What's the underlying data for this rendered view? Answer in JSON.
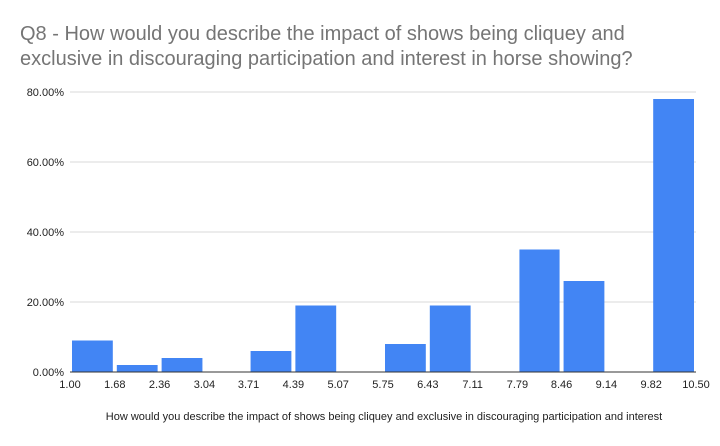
{
  "chart_data": {
    "type": "bar",
    "title": "Q8 - How would you describe the impact of shows being cliquey and exclusive in discouraging participation and interest in horse showing?",
    "xlabel": "How would you describe the impact of shows being cliquey and exclusive in discouraging participation and interest",
    "ylabel": "",
    "x_ticks": [
      "1.00",
      "1.68",
      "2.36",
      "3.04",
      "3.71",
      "4.39",
      "5.07",
      "5.75",
      "6.43",
      "7.11",
      "7.79",
      "8.46",
      "9.14",
      "9.82",
      "10.50"
    ],
    "y_ticks": [
      "0.00%",
      "20.00%",
      "40.00%",
      "60.00%",
      "80.00%"
    ],
    "ylim": [
      0,
      80
    ],
    "bins": [
      {
        "start": 1.0,
        "end": 1.68,
        "value": 9
      },
      {
        "start": 1.68,
        "end": 2.36,
        "value": 2
      },
      {
        "start": 2.36,
        "end": 3.04,
        "value": 4
      },
      {
        "start": 3.04,
        "end": 3.71,
        "value": 0
      },
      {
        "start": 3.71,
        "end": 4.39,
        "value": 6
      },
      {
        "start": 4.39,
        "end": 5.07,
        "value": 19
      },
      {
        "start": 5.07,
        "end": 5.75,
        "value": 0
      },
      {
        "start": 5.75,
        "end": 6.43,
        "value": 8
      },
      {
        "start": 6.43,
        "end": 7.11,
        "value": 19
      },
      {
        "start": 7.11,
        "end": 7.79,
        "value": 0
      },
      {
        "start": 7.79,
        "end": 8.46,
        "value": 35
      },
      {
        "start": 8.46,
        "end": 9.14,
        "value": 26
      },
      {
        "start": 9.14,
        "end": 9.82,
        "value": 0
      },
      {
        "start": 9.82,
        "end": 10.5,
        "value": 78
      }
    ],
    "bar_color": "#4285f4",
    "grid": true,
    "legend": "none"
  }
}
